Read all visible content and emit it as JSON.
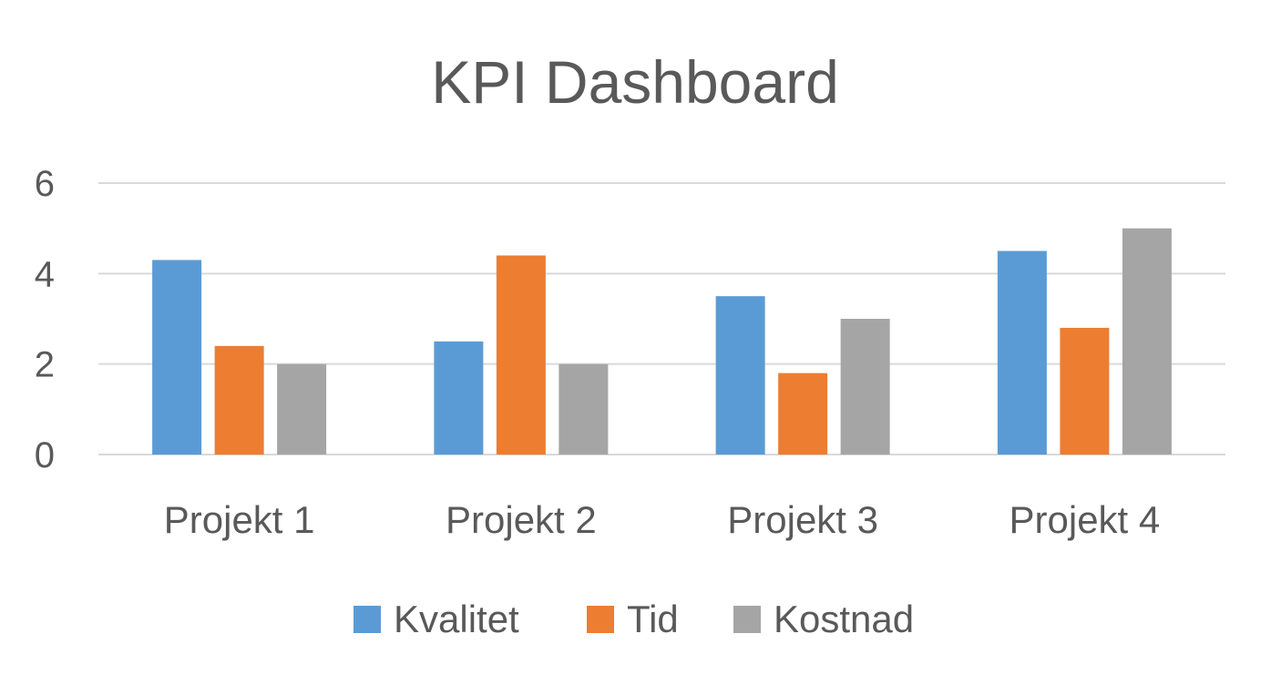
{
  "chart_data": {
    "type": "bar",
    "title": "KPI Dashboard",
    "xlabel": "",
    "ylabel": "",
    "categories": [
      "Projekt 1",
      "Projekt 2",
      "Projekt 3",
      "Projekt 4"
    ],
    "series": [
      {
        "name": "Kvalitet",
        "color": "#5B9BD5",
        "values": [
          4.3,
          2.5,
          3.5,
          4.5
        ]
      },
      {
        "name": "Tid",
        "color": "#ED7D31",
        "values": [
          2.4,
          4.4,
          1.8,
          2.8
        ]
      },
      {
        "name": "Kostnad",
        "color": "#A5A5A5",
        "values": [
          2,
          2,
          3,
          5
        ]
      }
    ],
    "ylim": [
      0,
      6
    ],
    "yticks": [
      "0",
      "2",
      "4",
      "6"
    ],
    "grid": true,
    "legend_position": "bottom"
  }
}
